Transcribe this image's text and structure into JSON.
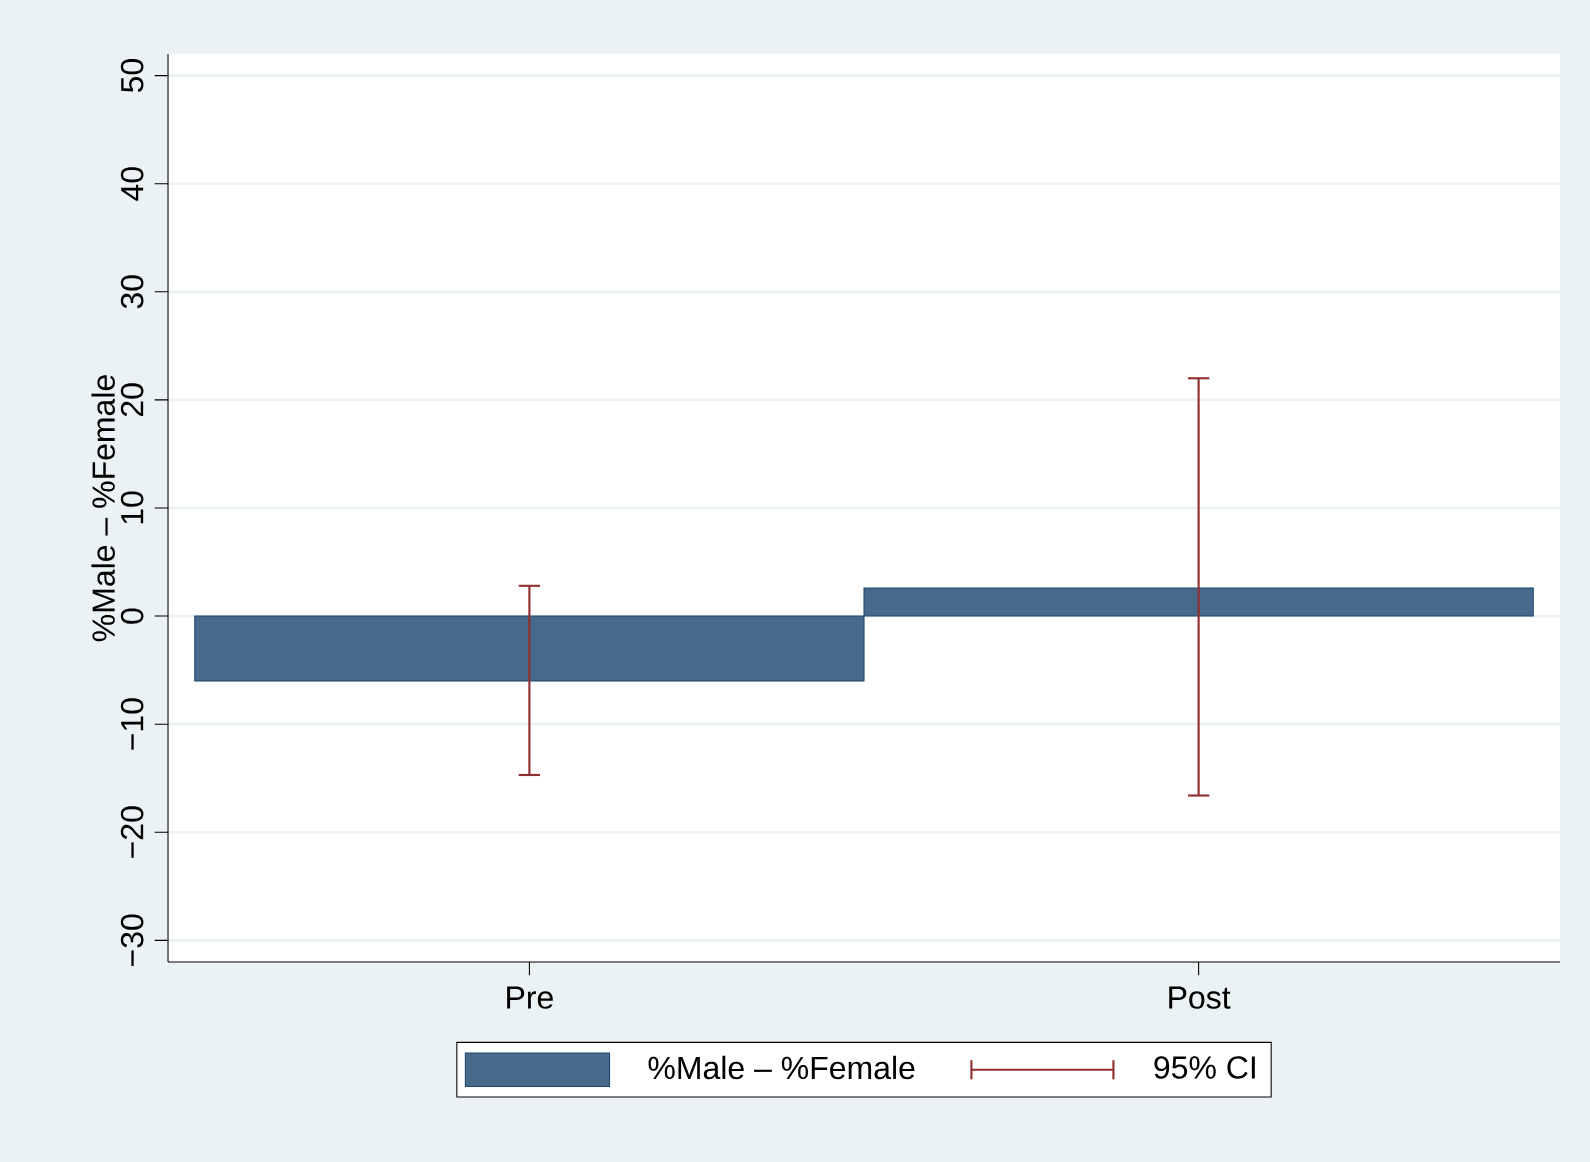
{
  "chart_data": {
    "type": "bar",
    "ylabel": "%Male – %Female",
    "categories": [
      "Pre",
      "Post"
    ],
    "series": [
      {
        "name": "%Male – %Female",
        "color": "#476a8a",
        "values": [
          -6,
          2.6
        ],
        "errors": [
          [
            -14.7,
            2.8
          ],
          [
            -16.6,
            22
          ]
        ]
      }
    ],
    "annotations": [
      "95% CI"
    ],
    "ylim": [
      -32,
      52
    ],
    "yticks": [
      {
        "value": -30,
        "label": "−30"
      },
      {
        "value": -20,
        "label": "−20"
      },
      {
        "value": -10,
        "label": "−10"
      },
      0,
      10,
      20,
      30,
      40,
      50
    ],
    "grid": "y",
    "legend": "bottom"
  }
}
